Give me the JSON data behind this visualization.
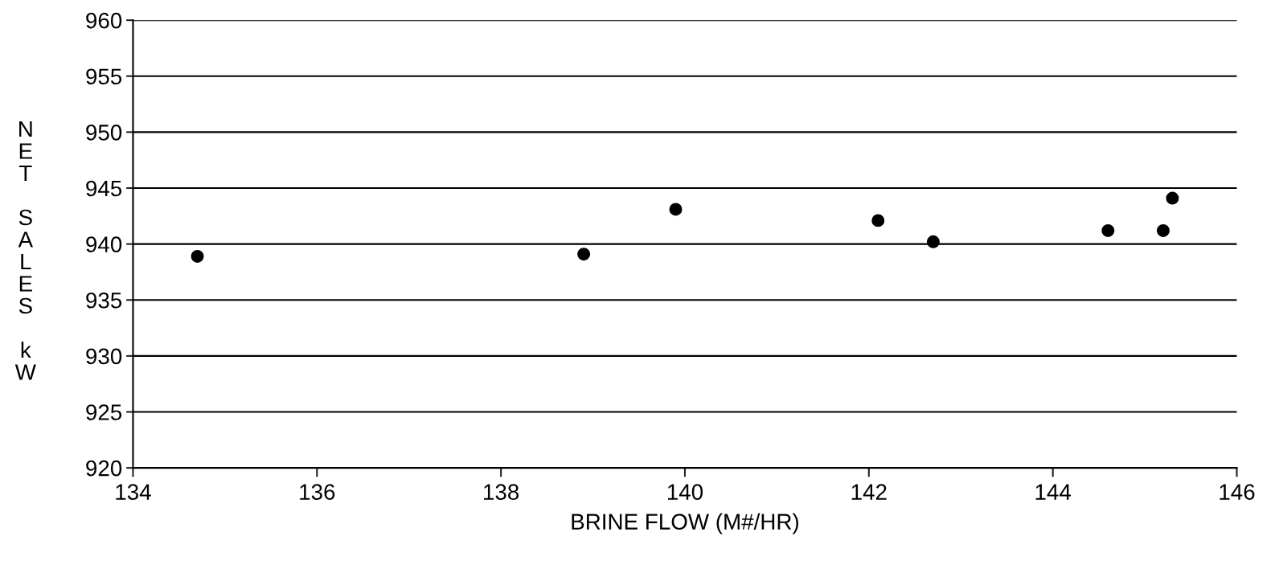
{
  "chart_data": {
    "type": "scatter",
    "xlabel": "BRINE FLOW (M#/HR)",
    "ylabel": "NET SALES kW",
    "x": [
      134.7,
      138.9,
      139.9,
      142.1,
      142.7,
      144.6,
      145.2,
      145.3
    ],
    "values": [
      938.9,
      939.1,
      943.1,
      942.1,
      940.2,
      941.2,
      941.2,
      944.1
    ],
    "color": "#000000",
    "marker": "circle",
    "xlim": [
      134,
      146
    ],
    "xticks": [
      134,
      136,
      138,
      140,
      142,
      144,
      146
    ],
    "ylim": [
      920,
      960
    ],
    "yticks": [
      920,
      925,
      930,
      935,
      940,
      945,
      950,
      955,
      960
    ],
    "grid": "y",
    "legend": false
  }
}
